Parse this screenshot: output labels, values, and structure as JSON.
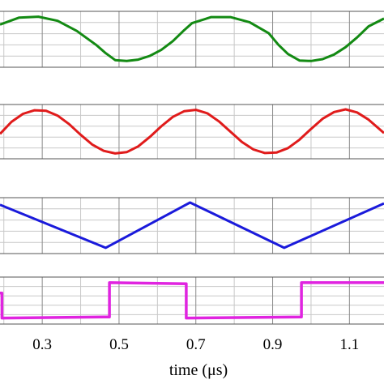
{
  "chart_data": {
    "type": "line",
    "xlabel": "time (μs)",
    "xlim": [
      0.19,
      1.19
    ],
    "xticks": [
      0.3,
      0.5,
      0.7,
      0.9,
      1.1
    ],
    "xtick_labels": [
      "0.3",
      "0.5",
      "0.7",
      "0.9",
      "1.1"
    ],
    "grid": true,
    "panels": [
      {
        "series": [
          {
            "color": "#138a13",
            "x": [
              0.19,
              0.24,
              0.29,
              0.34,
              0.39,
              0.44,
              0.465,
              0.49,
              0.52,
              0.55,
              0.58,
              0.61,
              0.64,
              0.67,
              0.69,
              0.74,
              0.79,
              0.84,
              0.89,
              0.915,
              0.94,
              0.97,
              1.0,
              1.03,
              1.06,
              1.09,
              1.12,
              1.15,
              1.19
            ],
            "y": [
              0.82,
              0.97,
              0.99,
              0.9,
              0.68,
              0.38,
              0.2,
              0.05,
              0.03,
              0.06,
              0.14,
              0.27,
              0.46,
              0.7,
              0.85,
              0.98,
              0.98,
              0.87,
              0.63,
              0.38,
              0.18,
              0.04,
              0.03,
              0.07,
              0.17,
              0.33,
              0.54,
              0.78,
              0.95
            ]
          }
        ]
      },
      {
        "series": [
          {
            "color": "#e01b1b",
            "x": [
              0.19,
              0.22,
              0.25,
              0.28,
              0.31,
              0.34,
              0.37,
              0.4,
              0.43,
              0.46,
              0.49,
              0.52,
              0.55,
              0.58,
              0.61,
              0.64,
              0.67,
              0.7,
              0.73,
              0.76,
              0.79,
              0.82,
              0.85,
              0.88,
              0.91,
              0.94,
              0.97,
              1.0,
              1.03,
              1.06,
              1.09,
              1.12,
              1.15,
              1.19
            ],
            "y": [
              0.45,
              0.72,
              0.9,
              0.98,
              0.97,
              0.86,
              0.67,
              0.43,
              0.21,
              0.07,
              0.01,
              0.04,
              0.17,
              0.38,
              0.62,
              0.83,
              0.96,
              0.99,
              0.91,
              0.73,
              0.5,
              0.27,
              0.1,
              0.02,
              0.03,
              0.13,
              0.32,
              0.56,
              0.79,
              0.94,
              1.0,
              0.93,
              0.77,
              0.47
            ]
          }
        ]
      },
      {
        "series": [
          {
            "color": "#1a1adb",
            "x": [
              0.19,
              0.465,
              0.685,
              0.93,
              1.19
            ],
            "y": [
              0.95,
              0.02,
              1.0,
              0.02,
              0.98
            ]
          }
        ]
      },
      {
        "series": [
          {
            "color": "#e024e0",
            "x": [
              0.19,
              0.195,
              0.195,
              0.475,
              0.475,
              0.675,
              0.675,
              0.975,
              0.975,
              1.19
            ],
            "y": [
              0.7,
              0.7,
              0.03,
              0.06,
              0.98,
              0.95,
              0.03,
              0.06,
              0.98,
              0.98
            ]
          }
        ]
      }
    ]
  }
}
